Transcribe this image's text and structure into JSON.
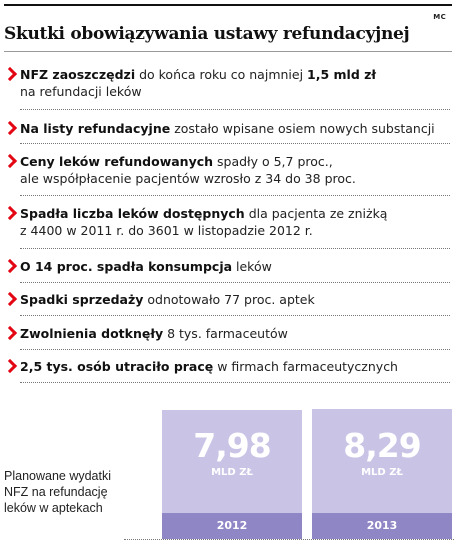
{
  "credit": "MC",
  "title": "Skutki obowiązywania ustawy refundacyjnej",
  "facts": [
    {
      "bold": "NFZ zaoszczędzi",
      "mid": " do końca roku co najmniej ",
      "bold2": "1,5 mld zł",
      "line2": "na refundacji leków"
    },
    {
      "bold": "Na listy refundacyjne",
      "rest": " zostało wpisane osiem nowych substancji"
    },
    {
      "bold": "Ceny leków refundowanych",
      "rest": " spadły o 5,7 proc.,",
      "line2": "ale współpłacenie pacjentów wzrosło z 34 do 38 proc."
    },
    {
      "bold": "Spadła liczba leków dostępnych",
      "rest": " dla pacjenta ze zniżką",
      "line2": "z 4400 w 2011 r. do 3601 w listopadzie 2012 r."
    },
    {
      "bold": "O 14 proc. spadła konsumpcja",
      "rest": " leków"
    },
    {
      "bold": "Spadki sprzedaży",
      "rest": " odnotowało 77 proc. aptek"
    },
    {
      "bold": "Zwolnienia dotknęły",
      "rest": " 8 tys. farmaceutów"
    },
    {
      "bold": "2,5 tys. osób utraciło pracę",
      "rest": " w firmach farmaceutycznych"
    }
  ],
  "chart_data": {
    "type": "bar",
    "label": "Planowane wydatki NFZ na refundację leków w aptekach",
    "unit": "MLD ZŁ",
    "categories": [
      "2012",
      "2013"
    ],
    "values": [
      7.98,
      8.29
    ],
    "value_labels": [
      "7,98",
      "8,29"
    ]
  },
  "colors": {
    "accent": "#e30613",
    "bar": "#c9c4e6",
    "bar_dark": "#8f86c6"
  }
}
